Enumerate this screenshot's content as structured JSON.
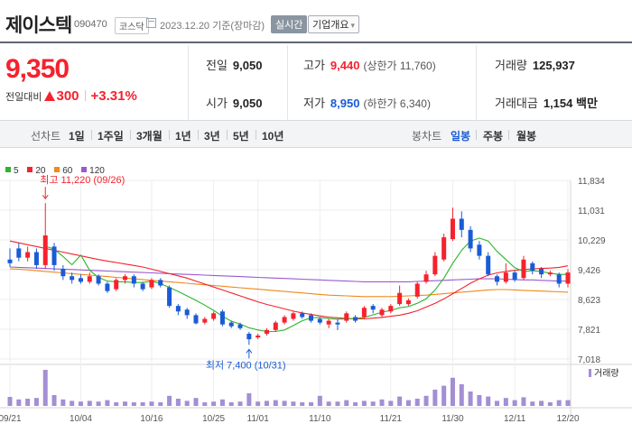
{
  "header": {
    "name": "제이스텍",
    "code": "090470",
    "market": "코스닥",
    "date": "2023.12.20 기준(장마감)",
    "realtime_label": "실시간",
    "info_label": "기업개요"
  },
  "quote": {
    "price": "9,350",
    "change_label": "전일대비",
    "change": "300",
    "change_pct": "+3.31%",
    "prev_close_label": "전일",
    "prev_close": "9,050",
    "open_label": "시가",
    "open": "9,050",
    "high_label": "고가",
    "high": "9,440",
    "upper_limit": "(상한가 11,760)",
    "low_label": "저가",
    "low": "8,950",
    "lower_limit": "(하한가 6,340)",
    "volume_label": "거래량",
    "volume": "125,937",
    "amount_label": "거래대금",
    "amount": "1,154 백만"
  },
  "tabs": {
    "line_label": "선차트",
    "line_items": [
      "1일",
      "1주일",
      "3개월",
      "1년",
      "3년",
      "5년",
      "10년"
    ],
    "candle_label": "봉차트",
    "candle_items": [
      "일봉",
      "주봉",
      "월봉"
    ],
    "selected_candle": "일봉"
  },
  "legend": [
    {
      "label": "5",
      "color": "#2db52d"
    },
    {
      "label": "20",
      "color": "#f5222d"
    },
    {
      "label": "60",
      "color": "#ef8a1c"
    },
    {
      "label": "120",
      "color": "#9b59d0"
    }
  ],
  "colors": {
    "up": "#f5222d",
    "down": "#1a5bd6",
    "volume": "#a48ed4"
  },
  "chart_data": {
    "type": "candlestick",
    "y_ticks": [
      "11,834",
      "11,031",
      "10,229",
      "9,426",
      "8,623",
      "7,821",
      "7,018"
    ],
    "y_tick_values": [
      11834,
      11031,
      10229,
      9426,
      8623,
      7821,
      7018
    ],
    "ylim": [
      7018,
      11834
    ],
    "x_ticks": [
      "09/21",
      "10/04",
      "10/16",
      "10/25",
      "11/01",
      "11/10",
      "11/21",
      "11/30",
      "12/11",
      "12/20"
    ],
    "x_tick_index": [
      0,
      8,
      16,
      23,
      28,
      35,
      43,
      50,
      57,
      63
    ],
    "annotations": [
      {
        "text": "최고 11,220 (09/26)",
        "index": 4,
        "value": 11220
      },
      {
        "text": "최저 7,400 (10/31)",
        "index": 27,
        "value": 7400
      }
    ],
    "candles": [
      [
        9700,
        9600,
        10000,
        9500
      ],
      [
        10000,
        9750,
        10150,
        9650
      ],
      [
        9750,
        9900,
        10050,
        9650
      ],
      [
        9900,
        9550,
        10000,
        9450
      ],
      [
        9550,
        10350,
        11220,
        9450
      ],
      [
        10050,
        9550,
        10150,
        9400
      ],
      [
        9450,
        9250,
        9550,
        9150
      ],
      [
        9250,
        9150,
        9350,
        9050
      ],
      [
        9200,
        9100,
        9300,
        9050
      ],
      [
        9100,
        9250,
        9350,
        9050
      ],
      [
        9250,
        9050,
        9300,
        9000
      ],
      [
        9050,
        8850,
        9100,
        8800
      ],
      [
        8900,
        9150,
        9200,
        8850
      ],
      [
        9150,
        9250,
        9300,
        9050
      ],
      [
        9250,
        9050,
        9300,
        8950
      ],
      [
        9050,
        8900,
        9100,
        8850
      ],
      [
        8950,
        9150,
        9200,
        8900
      ],
      [
        9150,
        9000,
        9200,
        8950
      ],
      [
        8950,
        8450,
        9000,
        8400
      ],
      [
        8450,
        8300,
        8500,
        8200
      ],
      [
        8350,
        8200,
        8400,
        8100
      ],
      [
        8200,
        7980,
        8250,
        7950
      ],
      [
        8000,
        8100,
        8150,
        7950
      ],
      [
        8100,
        8250,
        8300,
        8050
      ],
      [
        8300,
        7950,
        8350,
        7900
      ],
      [
        8000,
        7900,
        8050,
        7850
      ],
      [
        7950,
        7850,
        8000,
        7800
      ],
      [
        7700,
        7550,
        7750,
        7400
      ],
      [
        7600,
        7650,
        7700,
        7550
      ],
      [
        7700,
        7800,
        7850,
        7650
      ],
      [
        7800,
        8000,
        8050,
        7750
      ],
      [
        8000,
        8150,
        8200,
        7950
      ],
      [
        8100,
        8250,
        8300,
        8050
      ],
      [
        8250,
        8150,
        8300,
        8100
      ],
      [
        8200,
        8050,
        8250,
        8000
      ],
      [
        8100,
        8000,
        8150,
        7950
      ],
      [
        7950,
        8050,
        8100,
        7850
      ],
      [
        8000,
        7950,
        8100,
        7800
      ],
      [
        8050,
        8250,
        8300,
        8000
      ],
      [
        8150,
        8050,
        8200,
        8000
      ],
      [
        8150,
        8400,
        8450,
        8100
      ],
      [
        8450,
        8350,
        8500,
        8250
      ],
      [
        8200,
        8350,
        8400,
        8150
      ],
      [
        8300,
        8450,
        8500,
        8250
      ],
      [
        8500,
        8800,
        9000,
        8450
      ],
      [
        8500,
        8600,
        8650,
        8450
      ],
      [
        8700,
        9050,
        9100,
        8650
      ],
      [
        9100,
        9300,
        9400,
        9050
      ],
      [
        9300,
        9800,
        9900,
        9250
      ],
      [
        9700,
        10300,
        10400,
        9650
      ],
      [
        10250,
        10800,
        11100,
        10200
      ],
      [
        10800,
        10500,
        11000,
        10300
      ],
      [
        10500,
        10000,
        10600,
        9900
      ],
      [
        10100,
        9800,
        10200,
        9700
      ],
      [
        9800,
        9300,
        9900,
        9250
      ],
      [
        9250,
        9100,
        9300,
        9000
      ],
      [
        9100,
        9350,
        9600,
        9050
      ],
      [
        9350,
        9150,
        9400,
        9100
      ],
      [
        9200,
        9700,
        9800,
        9150
      ],
      [
        9600,
        9400,
        9650,
        9300
      ],
      [
        9450,
        9300,
        9500,
        9200
      ],
      [
        9300,
        9350,
        9400,
        9250
      ],
      [
        9300,
        9050,
        9350,
        8950
      ],
      [
        9050,
        9350,
        9440,
        8950
      ]
    ],
    "ma": {
      "5": [
        null,
        null,
        null,
        null,
        10060,
        9980,
        9780,
        9560,
        9820,
        9410,
        9220,
        9120,
        9100,
        9100,
        9080,
        9080,
        9120,
        9050,
        8950,
        8840,
        8720,
        8600,
        8470,
        8330,
        8170,
        8040,
        7960,
        7860,
        7800,
        7760,
        7760,
        7800,
        7920,
        8050,
        8130,
        8140,
        8110,
        8090,
        8100,
        8110,
        8140,
        8210,
        8280,
        8330,
        8400,
        8430,
        8520,
        8640,
        8880,
        9200,
        9600,
        9950,
        10200,
        10280,
        10200,
        9920,
        9700,
        9480,
        9380,
        9400,
        9380,
        9330,
        9300,
        9300
      ],
      "20": [
        10200,
        10150,
        10100,
        10050,
        10000,
        9950,
        9900,
        9850,
        9800,
        9750,
        9700,
        9660,
        9620,
        9580,
        9540,
        9500,
        9440,
        9380,
        9320,
        9260,
        9200,
        9120,
        9040,
        8960,
        8880,
        8800,
        8720,
        8640,
        8560,
        8490,
        8430,
        8370,
        8310,
        8260,
        8220,
        8180,
        8150,
        8130,
        8110,
        8100,
        8100,
        8120,
        8140,
        8170,
        8200,
        8250,
        8320,
        8420,
        8520,
        8640,
        8780,
        8920,
        9060,
        9180,
        9280,
        9340,
        9380,
        9410,
        9430,
        9450,
        9460,
        9470,
        9490,
        9530
      ],
      "60": [
        9450,
        9440,
        9420,
        9400,
        9380,
        9360,
        9340,
        9320,
        9300,
        9280,
        9260,
        9240,
        9220,
        9200,
        9180,
        9160,
        9140,
        9120,
        9100,
        9080,
        9060,
        9040,
        9020,
        9000,
        8980,
        8960,
        8940,
        8920,
        8900,
        8880,
        8860,
        8840,
        8820,
        8800,
        8780,
        8760,
        8740,
        8730,
        8720,
        8710,
        8700,
        8700,
        8700,
        8700,
        8710,
        8720,
        8730,
        8740,
        8760,
        8780,
        8800,
        8820,
        8840,
        8860,
        8880,
        8890,
        8890,
        8880,
        8870,
        8860,
        8850,
        8840,
        8830,
        8820
      ],
      "120": [
        9500,
        9490,
        9480,
        9470,
        9460,
        9450,
        9440,
        9430,
        9420,
        9410,
        9400,
        9390,
        9380,
        9370,
        9360,
        9350,
        9340,
        9330,
        9320,
        9310,
        9300,
        9290,
        9280,
        9270,
        9260,
        9250,
        9240,
        9230,
        9220,
        9210,
        9200,
        9190,
        9180,
        9170,
        9160,
        9150,
        9140,
        9130,
        9120,
        9110,
        9100,
        9100,
        9100,
        9100,
        9100,
        9100,
        9110,
        9120,
        9130,
        9140,
        9150,
        9160,
        9170,
        9180,
        9180,
        9180,
        9170,
        9160,
        9150,
        9150,
        9140,
        9130,
        9120,
        9120
      ]
    },
    "volume": [
      0.25,
      0.18,
      0.2,
      0.22,
      1.0,
      0.3,
      0.18,
      0.14,
      0.12,
      0.14,
      0.12,
      0.16,
      0.1,
      0.12,
      0.1,
      0.1,
      0.12,
      0.1,
      0.28,
      0.2,
      0.14,
      0.22,
      0.1,
      0.12,
      0.18,
      0.1,
      0.12,
      0.35,
      0.12,
      0.14,
      0.16,
      0.14,
      0.12,
      0.1,
      0.1,
      0.28,
      0.12,
      0.12,
      0.16,
      0.1,
      0.14,
      0.12,
      0.18,
      0.14,
      0.26,
      0.16,
      0.2,
      0.28,
      0.45,
      0.56,
      0.78,
      0.6,
      0.4,
      0.3,
      0.26,
      0.14,
      0.22,
      0.16,
      0.24,
      0.12,
      0.14,
      0.1,
      0.16,
      0.16
    ],
    "volume_label": "거래량"
  }
}
